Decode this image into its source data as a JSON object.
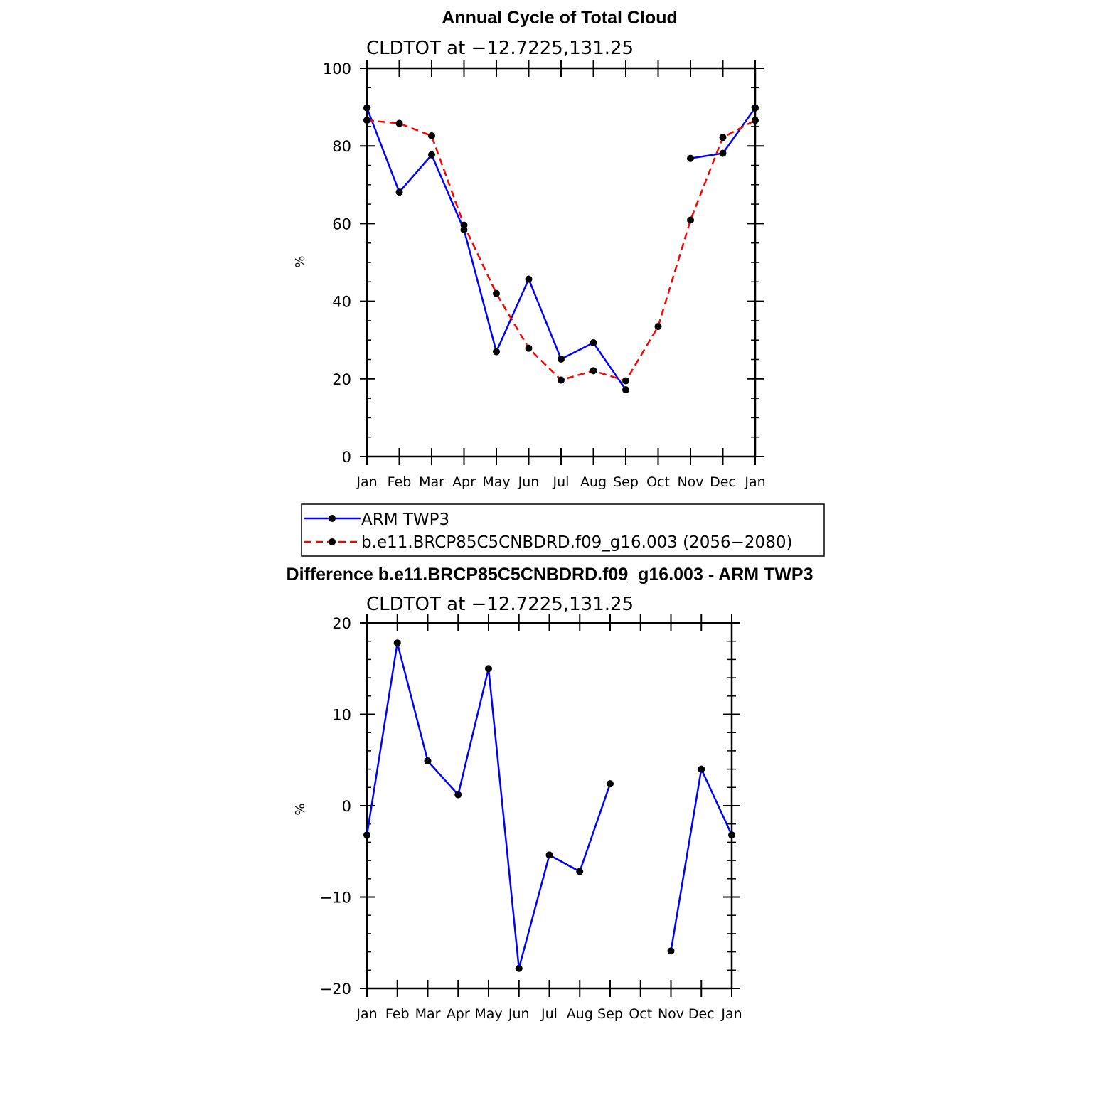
{
  "chart_data": [
    {
      "type": "line",
      "title": "Annual Cycle of Total Cloud",
      "subtitle": "CLDTOT at −12.7225,131.25",
      "ylabel": "%",
      "xlabel": "",
      "ylim": [
        0,
        100
      ],
      "yticks": [
        "0",
        "20",
        "40",
        "60",
        "80",
        "100"
      ],
      "categories": [
        "Jan",
        "Feb",
        "Mar",
        "Apr",
        "May",
        "Jun",
        "Jul",
        "Aug",
        "Sep",
        "Oct",
        "Nov",
        "Dec",
        "Jan"
      ],
      "series": [
        {
          "name": "ARM TWP3",
          "color": "#0000ff",
          "dash": "solid",
          "values": [
            89.8,
            68.1,
            77.7,
            58.4,
            27.0,
            45.7,
            25.1,
            29.3,
            17.2,
            null,
            76.8,
            78.1,
            89.8
          ]
        },
        {
          "name": "b.e11.BRCP85C5CNBDRD.f09_g16.003 (2056−2080)",
          "color": "#ff0000",
          "dash": "dashed",
          "values": [
            86.6,
            85.8,
            82.6,
            59.6,
            42.0,
            27.9,
            19.7,
            22.1,
            19.5,
            33.5,
            60.9,
            82.2,
            86.6
          ]
        }
      ],
      "legend": "below"
    },
    {
      "type": "line",
      "title": "Difference b.e11.BRCP85C5CNBDRD.f09_g16.003 - ARM TWP3",
      "subtitle": "CLDTOT at −12.7225,131.25",
      "ylabel": "%",
      "xlabel": "",
      "ylim": [
        -20,
        20
      ],
      "yticks": [
        "−20",
        "−10",
        "0",
        "10",
        "20"
      ],
      "categories": [
        "Jan",
        "Feb",
        "Mar",
        "Apr",
        "May",
        "Jun",
        "Jul",
        "Aug",
        "Sep",
        "Oct",
        "Nov",
        "Dec",
        "Jan"
      ],
      "series": [
        {
          "color": "#0000ff",
          "dash": "solid",
          "values": [
            -3.2,
            17.8,
            4.9,
            1.2,
            15.0,
            -17.8,
            -5.4,
            -7.2,
            2.4,
            null,
            -15.9,
            4.0,
            -3.2
          ]
        }
      ]
    }
  ]
}
